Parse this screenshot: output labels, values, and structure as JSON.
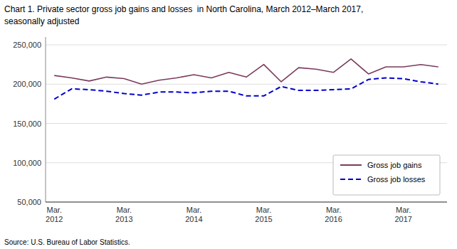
{
  "chart_data": {
    "type": "line",
    "title": "Chart 1. Private sector gross job gains and losses  in North Carolina, March 2012–March 2017,",
    "subtitle": "seasonally adjusted",
    "annotations": [
      "Source: U.S. Bureau of Labor Statistics."
    ],
    "categories": [
      "Mar.\n2012",
      null,
      null,
      null,
      "Mar.\n2013",
      null,
      null,
      null,
      "Mar.\n2014",
      null,
      null,
      null,
      "Mar.\n2015",
      null,
      null,
      null,
      "Mar.\n2016",
      null,
      null,
      null,
      "Mar.\n2017",
      null,
      null
    ],
    "series": [
      {
        "name": "Gross job gains",
        "color": "#7B3B5E",
        "line_style": "solid",
        "values": [
          211000,
          208000,
          204000,
          209000,
          207000,
          200000,
          205000,
          208000,
          212000,
          208000,
          215000,
          209000,
          225000,
          203000,
          221000,
          219000,
          215000,
          232000,
          213000,
          222000,
          222000,
          225000,
          222000
        ]
      },
      {
        "name": "Gross job losses",
        "color": "#0000CC",
        "line_style": "dashed",
        "values": [
          181000,
          194000,
          193000,
          191000,
          188000,
          186000,
          190000,
          190000,
          189000,
          191000,
          191000,
          185000,
          185000,
          197000,
          192000,
          192000,
          193000,
          194000,
          206000,
          208000,
          207000,
          203000,
          200000
        ]
      }
    ],
    "ylim": [
      50000,
      260000
    ],
    "yticks": [
      {
        "value": 50000,
        "label": "50,000"
      },
      {
        "value": 100000,
        "label": "100,000"
      },
      {
        "value": 150000,
        "label": "150,000"
      },
      {
        "value": 200000,
        "label": "200,000"
      },
      {
        "value": 250000,
        "label": "250,000"
      }
    ],
    "grid": true,
    "legend": "lower right"
  }
}
